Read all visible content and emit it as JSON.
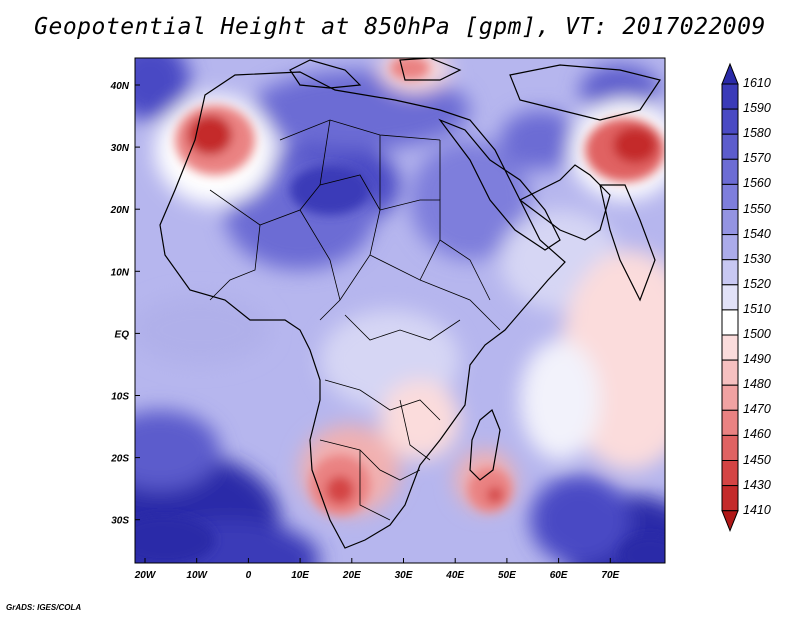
{
  "title": "Geopotential Height at 850hPa [gpm], VT: 2017022009",
  "credit": "GrADS: IGES/COLA",
  "lat_ticks": [
    "40N",
    "30N",
    "20N",
    "10N",
    "EQ",
    "10S",
    "20S",
    "30S"
  ],
  "lon_ticks": [
    "20W",
    "10W",
    "0",
    "10E",
    "20E",
    "30E",
    "40E",
    "50E",
    "60E",
    "70E"
  ],
  "colorbar": {
    "labels": [
      "1610",
      "1590",
      "1580",
      "1570",
      "1560",
      "1550",
      "1540",
      "1530",
      "1520",
      "1510",
      "1500",
      "1490",
      "1480",
      "1470",
      "1460",
      "1450",
      "1430",
      "1410"
    ],
    "colors": [
      "#2a2aa8",
      "#3a3ab8",
      "#4a4ac4",
      "#5c5ccc",
      "#6c6cd4",
      "#7e7edc",
      "#9494e2",
      "#ababea",
      "#c8c8f2",
      "#e2e2f8",
      "#ffffff",
      "#fbdcdc",
      "#f6c0c0",
      "#f1a2a2",
      "#ea8282",
      "#e06262",
      "#d44444",
      "#c42a2a",
      "#b01818"
    ]
  },
  "colors": {
    "background_mid": "#c8c8f2",
    "low_red": "#d44444",
    "high_blue": "#2a2aa8"
  }
}
